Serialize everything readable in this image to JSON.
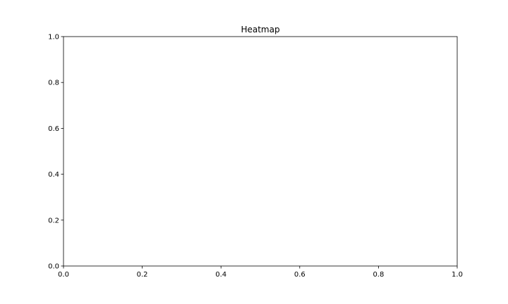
{
  "chart_data": {
    "type": "heatmap",
    "title": "Heatmap",
    "xlabel": "",
    "ylabel": "",
    "xlim": [
      0.0,
      1.0
    ],
    "ylim": [
      0.0,
      1.0
    ],
    "xticks": [
      "0.0",
      "0.2",
      "0.4",
      "0.6",
      "0.8",
      "1.0"
    ],
    "yticks": [
      "0.0",
      "0.2",
      "0.4",
      "0.6",
      "0.8",
      "1.0"
    ],
    "cells": [],
    "grid": false,
    "colors": {
      "background": "#ffffff",
      "axes": "#000000",
      "text": "#000000"
    }
  }
}
